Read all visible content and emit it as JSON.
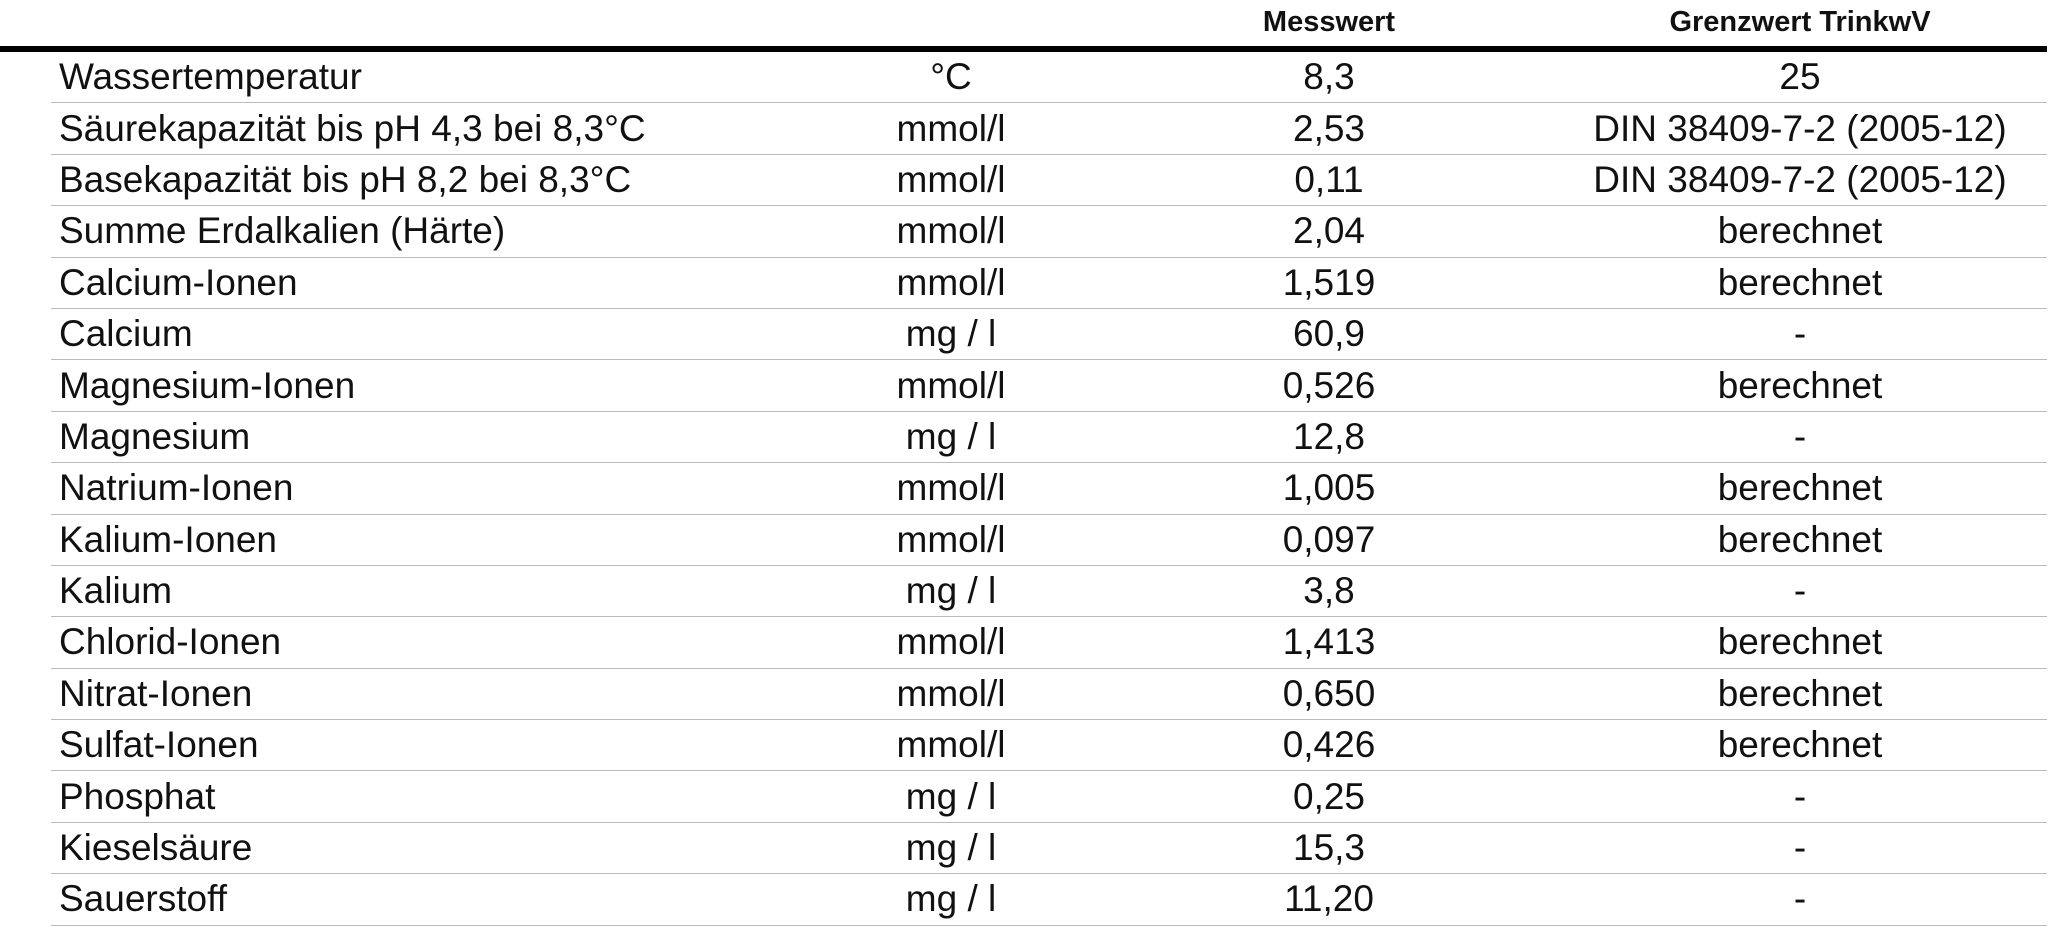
{
  "table": {
    "header": [
      "Messwert",
      "Grenzwert TrinkwV"
    ],
    "rows": [
      [
        "Wassertemperatur",
        "°C",
        "8,3",
        "25"
      ],
      [
        "Säurekapazität bis pH 4,3 bei 8,3°C",
        "mmol/l",
        "2,53",
        "DIN 38409-7-2 (2005-12)"
      ],
      [
        "Basekapazität bis pH 8,2 bei 8,3°C",
        "mmol/l",
        "0,11",
        "DIN 38409-7-2 (2005-12)"
      ],
      [
        "Summe Erdalkalien (Härte)",
        "mmol/l",
        "2,04",
        "berechnet"
      ],
      [
        "Calcium-Ionen",
        "mmol/l",
        "1,519",
        "berechnet"
      ],
      [
        "Calcium",
        "mg / l",
        "60,9",
        "-"
      ],
      [
        "Magnesium-Ionen",
        "mmol/l",
        "0,526",
        "berechnet"
      ],
      [
        "Magnesium",
        "mg / l",
        "12,8",
        "-"
      ],
      [
        "Natrium-Ionen",
        "mmol/l",
        "1,005",
        "berechnet"
      ],
      [
        "Kalium-Ionen",
        "mmol/l",
        "0,097",
        "berechnet"
      ],
      [
        "Kalium",
        "mg / l",
        "3,8",
        "-"
      ],
      [
        "Chlorid-Ionen",
        "mmol/l",
        "1,413",
        "berechnet"
      ],
      [
        "Nitrat-Ionen",
        "mmol/l",
        "0,650",
        "berechnet"
      ],
      [
        "Sulfat-Ionen",
        "mmol/l",
        "0,426",
        "berechnet"
      ],
      [
        "Phosphat",
        "mg / l",
        "0,25",
        "-"
      ],
      [
        "Kieselsäure",
        "mg / l",
        "15,3",
        "-"
      ],
      [
        "Sauerstoff",
        "mg / l",
        "11,20",
        "-"
      ]
    ]
  }
}
